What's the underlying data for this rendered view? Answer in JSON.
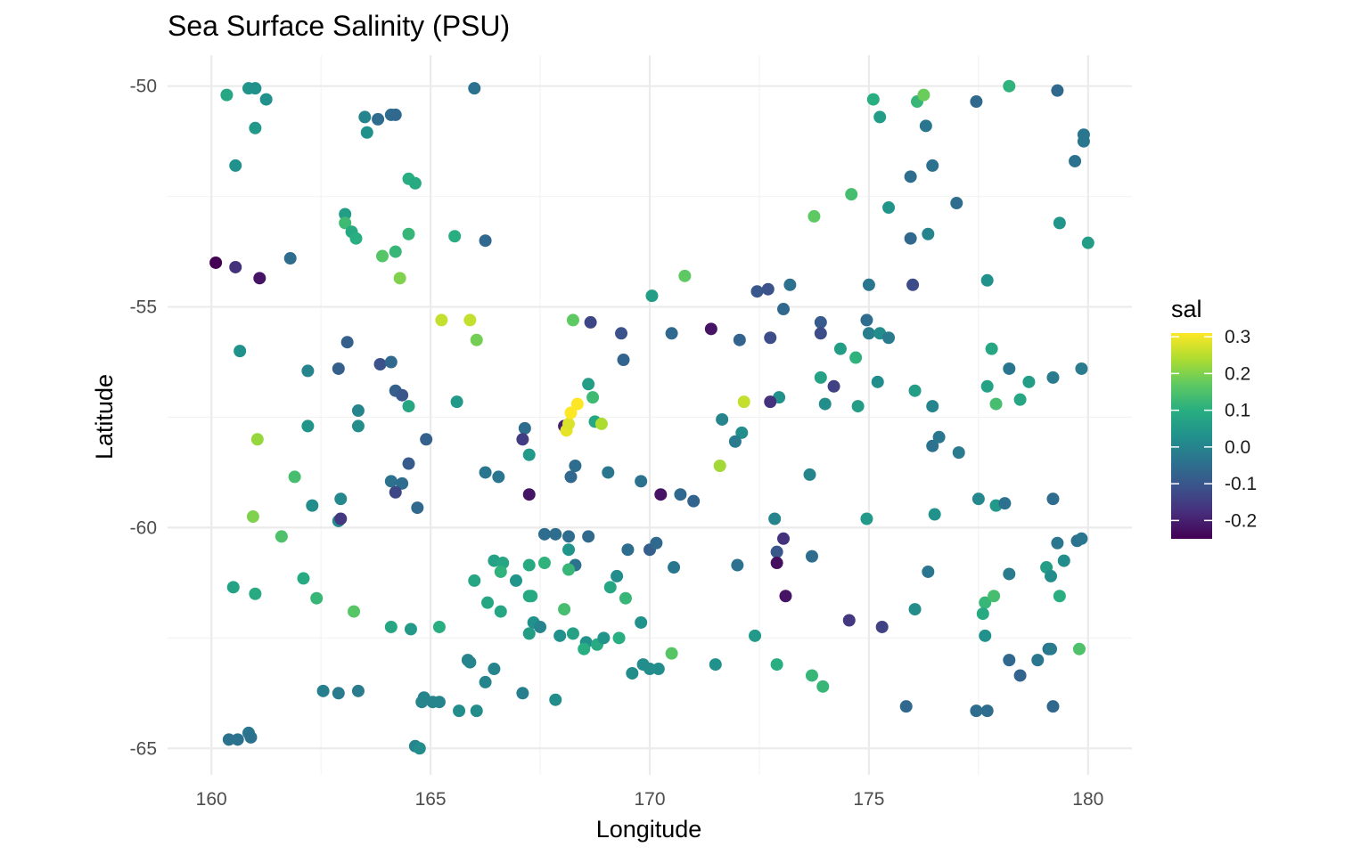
{
  "chart_data": {
    "type": "scatter",
    "title": "Sea Surface Salinity (PSU)",
    "xlabel": "Longitude",
    "ylabel": "Latitude",
    "xlim": [
      159,
      181
    ],
    "ylim": [
      -65.6,
      -49.3
    ],
    "x_ticks": [
      160,
      165,
      170,
      175,
      180
    ],
    "x_tick_labels": [
      "160",
      "165",
      "170",
      "175",
      "180"
    ],
    "y_ticks": [
      -50,
      -55,
      -60,
      -65
    ],
    "y_tick_labels": [
      "-50",
      "-55",
      "-60",
      "-65"
    ],
    "grid": true,
    "color_scale": {
      "name": "sal",
      "palette": "viridis",
      "range": [
        -0.25,
        0.31
      ],
      "breaks": [
        0.3,
        0.2,
        0.1,
        0.0,
        -0.1,
        -0.2
      ],
      "break_labels": [
        "0.3",
        "0.2",
        "0.1",
        "0.0",
        "-0.1",
        "-0.2"
      ],
      "position": "right"
    },
    "points": [
      [
        160.1,
        -54.0,
        -0.25
      ],
      [
        160.55,
        -54.1,
        -0.17
      ],
      [
        161.1,
        -54.35,
        -0.22
      ],
      [
        161.8,
        -53.9,
        -0.05
      ],
      [
        160.35,
        -50.2,
        0.08
      ],
      [
        160.85,
        -50.05,
        0.04
      ],
      [
        161.0,
        -50.05,
        0.03
      ],
      [
        161.25,
        -50.3,
        0.03
      ],
      [
        161.0,
        -50.95,
        0.05
      ],
      [
        160.55,
        -51.8,
        0.03
      ],
      [
        163.5,
        -50.7,
        0.0
      ],
      [
        163.8,
        -50.75,
        -0.05
      ],
      [
        164.1,
        -50.65,
        -0.05
      ],
      [
        164.2,
        -50.65,
        -0.06
      ],
      [
        163.55,
        -51.05,
        0.03
      ],
      [
        164.5,
        -52.1,
        0.1
      ],
      [
        164.65,
        -52.2,
        0.09
      ],
      [
        163.05,
        -52.9,
        0.06
      ],
      [
        163.05,
        -53.1,
        0.13
      ],
      [
        163.2,
        -53.3,
        0.09
      ],
      [
        163.3,
        -53.45,
        0.1
      ],
      [
        164.5,
        -53.35,
        0.12
      ],
      [
        165.55,
        -53.4,
        0.1
      ],
      [
        164.2,
        -53.75,
        0.12
      ],
      [
        163.9,
        -53.85,
        0.16
      ],
      [
        164.3,
        -54.35,
        0.2
      ],
      [
        166.0,
        -50.05,
        -0.04
      ],
      [
        166.25,
        -53.5,
        -0.06
      ],
      [
        160.65,
        -56.0,
        0.03
      ],
      [
        161.05,
        -58.0,
        0.22
      ],
      [
        162.2,
        -56.45,
        0.0
      ],
      [
        163.1,
        -55.8,
        -0.08
      ],
      [
        162.9,
        -56.4,
        -0.08
      ],
      [
        163.85,
        -56.3,
        -0.11
      ],
      [
        164.1,
        -56.25,
        -0.06
      ],
      [
        163.35,
        -57.35,
        0.0
      ],
      [
        162.2,
        -57.7,
        0.04
      ],
      [
        163.35,
        -57.7,
        0.02
      ],
      [
        164.2,
        -56.9,
        -0.08
      ],
      [
        164.35,
        -57.0,
        -0.1
      ],
      [
        164.5,
        -57.25,
        0.08
      ],
      [
        165.6,
        -57.15,
        0.05
      ],
      [
        164.9,
        -58.0,
        -0.08
      ],
      [
        164.5,
        -58.55,
        -0.09
      ],
      [
        164.1,
        -58.95,
        -0.04
      ],
      [
        164.35,
        -59.0,
        -0.05
      ],
      [
        164.2,
        -59.2,
        -0.13
      ],
      [
        162.3,
        -59.5,
        0.02
      ],
      [
        161.9,
        -58.85,
        0.14
      ],
      [
        162.95,
        -59.35,
        0.01
      ],
      [
        164.7,
        -59.55,
        -0.06
      ],
      [
        162.9,
        -59.85,
        0.01
      ],
      [
        162.95,
        -59.8,
        -0.16
      ],
      [
        160.95,
        -59.75,
        0.2
      ],
      [
        161.6,
        -60.2,
        0.15
      ],
      [
        165.25,
        -55.3,
        0.26
      ],
      [
        165.9,
        -55.3,
        0.26
      ],
      [
        166.05,
        -55.75,
        0.19
      ],
      [
        168.25,
        -55.3,
        0.17
      ],
      [
        168.65,
        -55.35,
        -0.13
      ],
      [
        167.15,
        -57.75,
        -0.05
      ],
      [
        167.1,
        -58.0,
        -0.15
      ],
      [
        167.25,
        -58.35,
        0.05
      ],
      [
        167.25,
        -59.25,
        -0.22
      ],
      [
        166.25,
        -58.75,
        -0.03
      ],
      [
        166.55,
        -58.85,
        -0.03
      ],
      [
        168.05,
        -57.7,
        -0.2
      ],
      [
        168.1,
        -57.8,
        0.29
      ],
      [
        168.15,
        -57.65,
        0.28
      ],
      [
        168.2,
        -57.4,
        0.31
      ],
      [
        168.35,
        -57.2,
        0.31
      ],
      [
        168.6,
        -56.75,
        0.06
      ],
      [
        168.7,
        -57.05,
        0.13
      ],
      [
        168.75,
        -57.6,
        0.08
      ],
      [
        168.9,
        -57.65,
        0.24
      ],
      [
        168.3,
        -58.6,
        -0.05
      ],
      [
        168.2,
        -58.85,
        -0.06
      ],
      [
        169.05,
        -58.75,
        -0.03
      ],
      [
        169.35,
        -55.6,
        -0.11
      ],
      [
        169.4,
        -56.2,
        -0.07
      ],
      [
        170.05,
        -54.75,
        0.06
      ],
      [
        170.8,
        -54.3,
        0.17
      ],
      [
        170.5,
        -55.6,
        -0.06
      ],
      [
        171.4,
        -55.5,
        -0.22
      ],
      [
        172.05,
        -55.75,
        -0.07
      ],
      [
        172.45,
        -54.65,
        -0.1
      ],
      [
        172.7,
        -54.6,
        -0.11
      ],
      [
        173.2,
        -54.5,
        -0.04
      ],
      [
        173.05,
        -55.05,
        -0.06
      ],
      [
        172.75,
        -55.7,
        -0.12
      ],
      [
        173.9,
        -55.35,
        -0.09
      ],
      [
        173.9,
        -55.6,
        -0.12
      ],
      [
        174.35,
        -55.95,
        0.06
      ],
      [
        174.7,
        -56.15,
        0.11
      ],
      [
        173.9,
        -56.6,
        0.07
      ],
      [
        174.0,
        -57.2,
        0.02
      ],
      [
        174.2,
        -56.8,
        -0.14
      ],
      [
        174.75,
        -57.25,
        0.06
      ],
      [
        175.0,
        -54.5,
        -0.03
      ],
      [
        174.95,
        -55.3,
        -0.05
      ],
      [
        175.0,
        -55.6,
        -0.01
      ],
      [
        175.25,
        -55.6,
        0.02
      ],
      [
        175.45,
        -55.7,
        -0.02
      ],
      [
        175.2,
        -56.7,
        0.02
      ],
      [
        172.95,
        -57.05,
        0.03
      ],
      [
        172.15,
        -57.15,
        0.26
      ],
      [
        172.75,
        -57.15,
        -0.17
      ],
      [
        171.65,
        -57.55,
        0.0
      ],
      [
        172.1,
        -57.85,
        0.02
      ],
      [
        171.95,
        -58.05,
        -0.02
      ],
      [
        171.6,
        -58.6,
        0.23
      ],
      [
        173.65,
        -58.8,
        0.0
      ],
      [
        169.8,
        -58.95,
        -0.04
      ],
      [
        170.25,
        -59.25,
        -0.22
      ],
      [
        170.7,
        -59.25,
        -0.06
      ],
      [
        171.0,
        -59.4,
        -0.07
      ],
      [
        170.0,
        -60.5,
        -0.08
      ],
      [
        170.15,
        -60.35,
        -0.06
      ],
      [
        169.5,
        -60.5,
        -0.05
      ],
      [
        170.55,
        -60.9,
        -0.03
      ],
      [
        168.6,
        -60.2,
        -0.06
      ],
      [
        168.15,
        -60.2,
        -0.05
      ],
      [
        167.85,
        -60.15,
        -0.05
      ],
      [
        167.6,
        -60.15,
        -0.05
      ],
      [
        168.15,
        -60.5,
        0.04
      ],
      [
        168.3,
        -60.85,
        -0.04
      ],
      [
        168.15,
        -60.95,
        0.12
      ],
      [
        167.6,
        -60.8,
        0.11
      ],
      [
        167.25,
        -60.85,
        0.09
      ],
      [
        166.45,
        -60.75,
        0.07
      ],
      [
        166.65,
        -60.8,
        0.08
      ],
      [
        166.6,
        -61.0,
        0.11
      ],
      [
        166.0,
        -61.2,
        0.08
      ],
      [
        166.95,
        -61.2,
        0.04
      ],
      [
        167.25,
        -61.55,
        0.08
      ],
      [
        167.3,
        -61.55,
        0.09
      ],
      [
        166.3,
        -61.7,
        0.08
      ],
      [
        166.6,
        -61.9,
        0.08
      ],
      [
        168.05,
        -61.85,
        0.14
      ],
      [
        169.1,
        -61.35,
        0.08
      ],
      [
        169.25,
        -61.1,
        0.02
      ],
      [
        169.45,
        -61.6,
        0.12
      ],
      [
        167.35,
        -62.15,
        0.03
      ],
      [
        167.5,
        -62.25,
        0.0
      ],
      [
        167.25,
        -62.4,
        0.06
      ],
      [
        167.95,
        -62.45,
        0.03
      ],
      [
        168.25,
        -62.4,
        0.07
      ],
      [
        168.55,
        -62.6,
        0.03
      ],
      [
        168.5,
        -62.75,
        0.1
      ],
      [
        168.8,
        -62.65,
        0.09
      ],
      [
        168.95,
        -62.5,
        0.04
      ],
      [
        169.3,
        -62.5,
        0.1
      ],
      [
        169.8,
        -62.15,
        0.03
      ],
      [
        169.6,
        -63.3,
        0.02
      ],
      [
        169.85,
        -63.1,
        0.02
      ],
      [
        170.0,
        -63.2,
        0.02
      ],
      [
        170.2,
        -63.2,
        0.02
      ],
      [
        170.5,
        -62.85,
        0.16
      ],
      [
        171.5,
        -63.1,
        0.03
      ],
      [
        172.0,
        -60.85,
        -0.04
      ],
      [
        172.4,
        -62.45,
        0.05
      ],
      [
        172.85,
        -59.8,
        0.0
      ],
      [
        172.9,
        -60.55,
        -0.1
      ],
      [
        173.05,
        -60.25,
        -0.17
      ],
      [
        172.9,
        -60.8,
        -0.23
      ],
      [
        173.1,
        -61.55,
        -0.22
      ],
      [
        173.7,
        -60.65,
        -0.05
      ],
      [
        172.9,
        -63.1,
        0.1
      ],
      [
        173.7,
        -63.35,
        0.12
      ],
      [
        173.95,
        -63.6,
        0.12
      ],
      [
        174.55,
        -62.1,
        -0.16
      ],
      [
        175.3,
        -62.25,
        -0.14
      ],
      [
        174.95,
        -59.8,
        0.05
      ],
      [
        176.05,
        -61.85,
        0.02
      ],
      [
        176.35,
        -61.0,
        -0.03
      ],
      [
        176.5,
        -59.7,
        0.03
      ],
      [
        176.05,
        -56.9,
        0.06
      ],
      [
        176.45,
        -57.25,
        0.0
      ],
      [
        176.45,
        -58.15,
        -0.04
      ],
      [
        176.6,
        -57.95,
        -0.03
      ],
      [
        177.05,
        -58.3,
        -0.02
      ],
      [
        177.5,
        -59.35,
        0.01
      ],
      [
        177.7,
        -56.8,
        0.07
      ],
      [
        177.8,
        -55.95,
        0.08
      ],
      [
        177.7,
        -54.4,
        0.03
      ],
      [
        177.9,
        -57.2,
        0.14
      ],
      [
        177.9,
        -59.5,
        0.05
      ],
      [
        178.1,
        -59.45,
        -0.04
      ],
      [
        178.2,
        -56.4,
        -0.03
      ],
      [
        178.45,
        -57.1,
        0.08
      ],
      [
        178.65,
        -56.7,
        0.06
      ],
      [
        179.2,
        -56.6,
        -0.02
      ],
      [
        179.85,
        -56.4,
        -0.02
      ],
      [
        179.2,
        -59.35,
        -0.05
      ],
      [
        179.3,
        -60.35,
        -0.03
      ],
      [
        179.45,
        -60.75,
        0.02
      ],
      [
        179.75,
        -60.3,
        -0.04
      ],
      [
        179.85,
        -60.25,
        -0.03
      ],
      [
        179.05,
        -60.9,
        0.06
      ],
      [
        179.15,
        -61.1,
        0.02
      ],
      [
        179.35,
        -61.55,
        0.1
      ],
      [
        177.65,
        -61.7,
        0.12
      ],
      [
        177.85,
        -61.55,
        0.14
      ],
      [
        177.6,
        -61.95,
        0.09
      ],
      [
        177.65,
        -62.45,
        0.03
      ],
      [
        178.2,
        -61.05,
        -0.02
      ],
      [
        178.2,
        -63.0,
        -0.06
      ],
      [
        178.45,
        -63.35,
        -0.07
      ],
      [
        178.85,
        -63.0,
        -0.03
      ],
      [
        179.1,
        -62.75,
        -0.04
      ],
      [
        179.15,
        -62.75,
        -0.02
      ],
      [
        179.8,
        -62.75,
        0.15
      ],
      [
        179.2,
        -64.05,
        -0.06
      ],
      [
        177.45,
        -64.15,
        -0.05
      ],
      [
        177.7,
        -64.15,
        -0.05
      ],
      [
        175.85,
        -64.05,
        -0.06
      ],
      [
        175.1,
        -50.3,
        0.1
      ],
      [
        175.25,
        -50.7,
        0.06
      ],
      [
        176.1,
        -50.35,
        0.12
      ],
      [
        176.25,
        -50.2,
        0.18
      ],
      [
        176.3,
        -50.9,
        -0.03
      ],
      [
        176.45,
        -51.8,
        -0.04
      ],
      [
        175.95,
        -52.05,
        -0.05
      ],
      [
        175.45,
        -52.75,
        0.04
      ],
      [
        174.6,
        -52.45,
        0.14
      ],
      [
        173.75,
        -52.95,
        0.17
      ],
      [
        175.95,
        -53.45,
        -0.06
      ],
      [
        176.35,
        -53.35,
        0.0
      ],
      [
        176.0,
        -54.5,
        -0.12
      ],
      [
        177.45,
        -50.35,
        -0.06
      ],
      [
        177.0,
        -52.65,
        -0.05
      ],
      [
        178.2,
        -50.0,
        0.11
      ],
      [
        179.3,
        -50.1,
        -0.06
      ],
      [
        179.9,
        -51.1,
        -0.03
      ],
      [
        179.9,
        -51.25,
        -0.03
      ],
      [
        179.7,
        -51.7,
        -0.04
      ],
      [
        179.35,
        -53.1,
        0.04
      ],
      [
        180.0,
        -53.55,
        0.06
      ],
      [
        160.5,
        -61.35,
        0.07
      ],
      [
        161.0,
        -61.5,
        0.09
      ],
      [
        162.1,
        -61.15,
        0.09
      ],
      [
        162.4,
        -61.6,
        0.12
      ],
      [
        163.25,
        -61.9,
        0.16
      ],
      [
        164.1,
        -62.25,
        0.08
      ],
      [
        164.55,
        -62.3,
        0.05
      ],
      [
        165.2,
        -62.25,
        0.1
      ],
      [
        165.85,
        -63.0,
        0.0
      ],
      [
        165.9,
        -63.05,
        0.0
      ],
      [
        166.25,
        -63.5,
        0.0
      ],
      [
        166.45,
        -63.2,
        0.0
      ],
      [
        167.1,
        -63.75,
        -0.01
      ],
      [
        167.85,
        -63.9,
        0.02
      ],
      [
        166.05,
        -64.15,
        0.02
      ],
      [
        165.65,
        -64.15,
        0.02
      ],
      [
        165.2,
        -63.95,
        0.0
      ],
      [
        165.05,
        -63.95,
        0.0
      ],
      [
        164.8,
        -63.95,
        0.0
      ],
      [
        164.85,
        -63.85,
        0.0
      ],
      [
        164.65,
        -64.95,
        0.0
      ],
      [
        164.75,
        -65.0,
        0.02
      ],
      [
        162.55,
        -63.7,
        -0.01
      ],
      [
        162.9,
        -63.75,
        -0.02
      ],
      [
        163.35,
        -63.7,
        -0.02
      ],
      [
        160.4,
        -64.8,
        -0.04
      ],
      [
        160.6,
        -64.8,
        -0.04
      ],
      [
        160.85,
        -64.65,
        -0.03
      ],
      [
        160.9,
        -64.75,
        -0.04
      ]
    ]
  }
}
